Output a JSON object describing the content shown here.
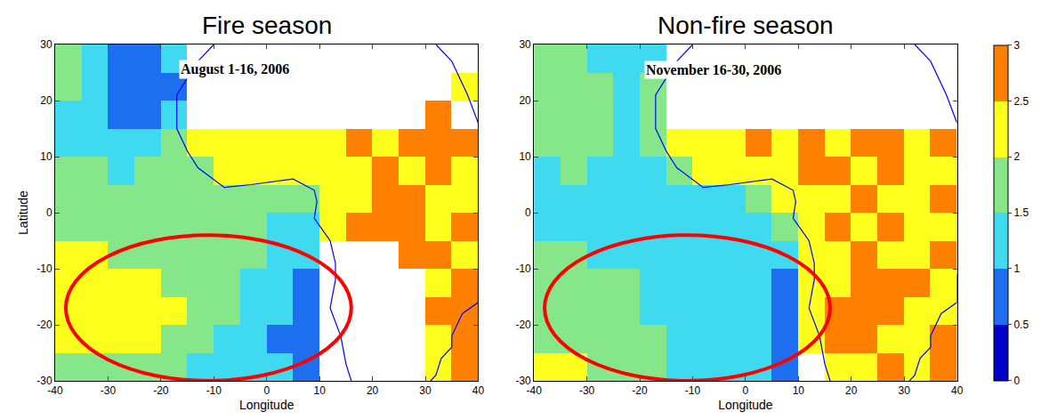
{
  "chart_data": [
    {
      "type": "heatmap",
      "title": "Fire season",
      "annotation": "August 1-16, 2006",
      "xlabel": "Longitude",
      "ylabel": "Latitude",
      "xlim": [
        -40,
        40
      ],
      "ylim": [
        -30,
        30
      ],
      "xticks": [
        -40,
        -30,
        -20,
        -10,
        0,
        10,
        20,
        30,
        40
      ],
      "yticks": [
        -30,
        -20,
        -10,
        0,
        10,
        20,
        30
      ],
      "zlim": [
        0,
        3
      ],
      "x": [
        -37.5,
        -32.5,
        -27.5,
        -22.5,
        -17.5,
        -12.5,
        -7.5,
        -2.5,
        2.5,
        7.5,
        12.5,
        17.5,
        22.5,
        27.5,
        32.5,
        37.5
      ],
      "y": [
        -27.5,
        -22.5,
        -17.5,
        -12.5,
        -7.5,
        -2.5,
        2.5,
        7.5,
        12.5,
        17.5,
        22.5,
        27.5
      ],
      "z": [
        [
          1.8,
          1.9,
          1.8,
          1.6,
          1.5,
          1.4,
          1.3,
          1.2,
          1.0,
          0.8,
          null,
          null,
          null,
          null,
          2.3,
          2.5
        ],
        [
          2.2,
          2.2,
          2.1,
          2.0,
          1.9,
          1.7,
          1.4,
          1.2,
          0.9,
          0.7,
          null,
          null,
          null,
          null,
          2.4,
          2.5
        ],
        [
          2.3,
          2.2,
          2.2,
          2.1,
          2.0,
          1.8,
          1.5,
          1.3,
          1.0,
          0.8,
          null,
          null,
          null,
          null,
          2.5,
          2.6
        ],
        [
          2.2,
          2.2,
          2.1,
          2.0,
          1.9,
          1.8,
          1.5,
          1.3,
          1.0,
          0.9,
          null,
          null,
          null,
          null,
          2.4,
          2.6
        ],
        [
          2.0,
          2.0,
          1.9,
          1.8,
          1.7,
          1.7,
          1.6,
          1.5,
          1.3,
          1.2,
          null,
          null,
          null,
          2.5,
          2.6,
          2.4
        ],
        [
          1.7,
          1.6,
          1.7,
          1.6,
          1.6,
          1.5,
          1.6,
          1.5,
          1.4,
          1.4,
          2.3,
          2.5,
          2.6,
          2.5,
          2.4,
          2.6
        ],
        [
          1.6,
          1.5,
          1.6,
          1.7,
          1.5,
          1.6,
          1.7,
          1.6,
          1.5,
          1.9,
          2.2,
          2.4,
          2.5,
          2.6,
          2.4,
          2.3
        ],
        [
          1.5,
          1.6,
          1.4,
          1.5,
          1.6,
          1.5,
          2.0,
          2.1,
          2.2,
          2.3,
          2.3,
          2.4,
          2.5,
          2.4,
          2.5,
          2.4
        ],
        [
          1.4,
          1.3,
          1.2,
          1.3,
          1.5,
          2.0,
          2.2,
          2.3,
          2.4,
          2.2,
          2.3,
          2.5,
          2.4,
          2.6,
          2.5,
          2.5
        ],
        [
          1.3,
          1.1,
          0.9,
          0.8,
          1.2,
          null,
          null,
          null,
          null,
          null,
          null,
          null,
          null,
          null,
          2.5,
          null
        ],
        [
          1.5,
          1.2,
          0.8,
          0.7,
          0.9,
          null,
          null,
          null,
          null,
          null,
          null,
          null,
          null,
          null,
          null,
          2.4
        ],
        [
          1.6,
          1.3,
          0.9,
          0.8,
          1.1,
          null,
          null,
          null,
          null,
          null,
          null,
          null,
          null,
          null,
          null,
          null
        ]
      ],
      "coastline": {
        "color": "blue",
        "lon": [
          -10,
          -13,
          -17,
          -17,
          -15,
          -13,
          -8,
          -3,
          5,
          9,
          9.5,
          9,
          12,
          13,
          13,
          12,
          14,
          15,
          16,
          null,
          40,
          40,
          37,
          35,
          35,
          33,
          32,
          31,
          null,
          32,
          35,
          38,
          40
        ],
        "lat": [
          30,
          27,
          21,
          15,
          11,
          8,
          4.5,
          5,
          6,
          4,
          2,
          -1,
          -5,
          -9,
          -12,
          -17,
          -22,
          -27,
          -30,
          null,
          -11,
          -16,
          -18,
          -22,
          -24,
          -26,
          -29,
          -30,
          null,
          30,
          27,
          21,
          16
        ]
      },
      "ellipse": {
        "x": [
          -38,
          16
        ],
        "y": [
          -30,
          -4
        ],
        "color": "red"
      }
    },
    {
      "type": "heatmap",
      "title": "Non-fire season",
      "annotation": "November 16-30, 2006",
      "xlabel": "Longitude",
      "xlim": [
        -40,
        40
      ],
      "ylim": [
        -30,
        30
      ],
      "xticks": [
        -40,
        -30,
        -20,
        -10,
        0,
        10,
        20,
        30,
        40
      ],
      "yticks": [
        -30,
        -20,
        -10,
        0,
        10,
        20,
        30
      ],
      "zlim": [
        0,
        3
      ],
      "colorbar_ticks": [
        0,
        0.5,
        1,
        1.5,
        2,
        2.5,
        3
      ],
      "x": [
        -37.5,
        -32.5,
        -27.5,
        -22.5,
        -17.5,
        -12.5,
        -7.5,
        -2.5,
        2.5,
        7.5,
        12.5,
        17.5,
        22.5,
        27.5,
        32.5,
        37.5
      ],
      "y": [
        -27.5,
        -22.5,
        -17.5,
        -12.5,
        -7.5,
        -2.5,
        2.5,
        7.5,
        12.5,
        17.5,
        22.5,
        27.5
      ],
      "z": [
        [
          2.1,
          2.0,
          1.9,
          1.7,
          1.6,
          1.4,
          1.3,
          1.2,
          1.1,
          0.9,
          null,
          2.4,
          2.3,
          2.5,
          2.4,
          2.6
        ],
        [
          1.9,
          1.8,
          1.7,
          1.6,
          1.5,
          1.4,
          1.3,
          1.2,
          1.1,
          0.8,
          2.3,
          2.5,
          2.6,
          2.4,
          2.3,
          2.5
        ],
        [
          1.7,
          1.7,
          1.6,
          1.5,
          1.4,
          1.3,
          1.2,
          1.2,
          1.0,
          0.9,
          2.4,
          2.5,
          2.5,
          2.6,
          2.4,
          2.2
        ],
        [
          1.6,
          1.6,
          1.5,
          1.5,
          1.4,
          1.3,
          1.3,
          1.2,
          1.1,
          0.9,
          2.3,
          2.4,
          2.6,
          2.5,
          2.5,
          2.4
        ],
        [
          1.5,
          1.5,
          1.4,
          1.4,
          1.3,
          1.3,
          1.3,
          1.2,
          1.2,
          1.1,
          2.2,
          2.4,
          2.5,
          2.3,
          2.4,
          2.5
        ],
        [
          1.4,
          1.3,
          1.4,
          1.3,
          1.3,
          1.2,
          1.2,
          1.3,
          1.4,
          1.6,
          2.3,
          2.5,
          2.4,
          2.6,
          2.3,
          2.4
        ],
        [
          1.3,
          1.2,
          1.3,
          1.2,
          1.1,
          1.2,
          1.3,
          1.4,
          1.6,
          2.0,
          2.3,
          2.4,
          2.5,
          2.4,
          2.3,
          2.5
        ],
        [
          1.4,
          1.5,
          1.4,
          1.3,
          1.4,
          1.5,
          2.1,
          2.2,
          2.3,
          2.4,
          2.5,
          2.6,
          2.4,
          2.5,
          2.4,
          2.3
        ],
        [
          1.6,
          1.5,
          1.5,
          1.4,
          1.7,
          2.2,
          2.3,
          2.4,
          2.5,
          2.4,
          2.5,
          2.4,
          2.6,
          2.5,
          2.4,
          2.5
        ],
        [
          1.7,
          1.6,
          1.5,
          1.4,
          1.6,
          null,
          null,
          null,
          null,
          null,
          null,
          null,
          null,
          null,
          null,
          null
        ],
        [
          1.8,
          1.6,
          1.5,
          1.3,
          1.5,
          null,
          null,
          null,
          null,
          null,
          null,
          null,
          null,
          null,
          null,
          null
        ],
        [
          1.7,
          1.6,
          1.4,
          1.2,
          1.4,
          null,
          null,
          null,
          null,
          null,
          null,
          null,
          null,
          null,
          null,
          null
        ]
      ],
      "coastline": {
        "color": "blue",
        "lon": [
          -10,
          -13,
          -17,
          -17,
          -15,
          -13,
          -8,
          -3,
          5,
          9,
          9.5,
          9,
          12,
          13,
          13,
          12,
          14,
          15,
          16,
          null,
          40,
          40,
          37,
          35,
          35,
          33,
          32,
          31,
          null,
          32,
          35,
          38,
          40
        ],
        "lat": [
          30,
          27,
          21,
          15,
          11,
          8,
          4.5,
          5,
          6,
          4,
          2,
          -1,
          -5,
          -9,
          -12,
          -17,
          -22,
          -27,
          -30,
          null,
          -11,
          -16,
          -18,
          -22,
          -24,
          -26,
          -29,
          -30,
          null,
          30,
          27,
          21,
          16
        ]
      },
      "ellipse": {
        "x": [
          -38,
          16
        ],
        "y": [
          -30,
          -4
        ],
        "color": "red"
      }
    }
  ]
}
